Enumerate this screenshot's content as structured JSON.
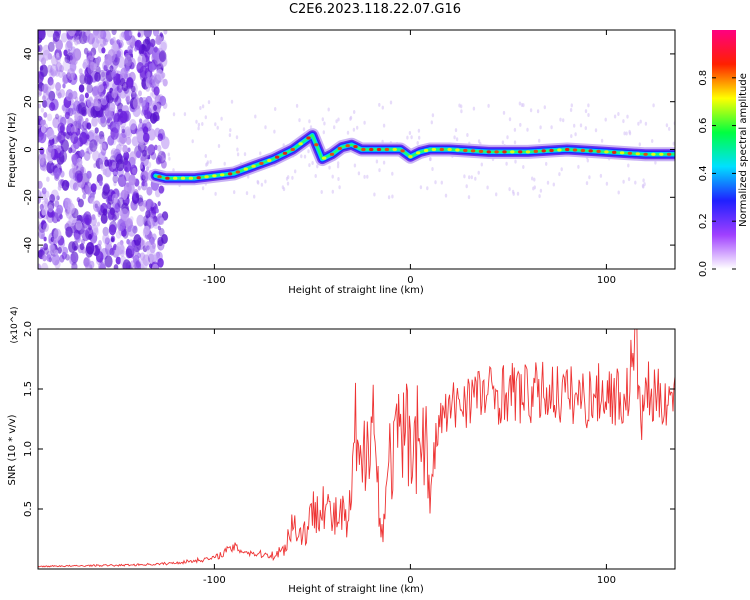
{
  "title": "C2E6.2023.118.22.07.G16",
  "chart_data": [
    {
      "type": "heatmap",
      "xlabel": "Height of straight line (km)",
      "ylabel": "Frequency (Hz)",
      "xlim": [
        -190,
        135
      ],
      "ylim": [
        -50,
        50
      ],
      "x_ticks": [
        -100,
        0,
        100
      ],
      "y_ticks": [
        -40,
        -20,
        0,
        20,
        40
      ],
      "colorbar": {
        "label": "Normalized spectral amplitude",
        "range": [
          0,
          1
        ],
        "ticks": [
          0.0,
          0.2,
          0.4,
          0.6,
          0.8
        ],
        "colors": [
          "#ffffff",
          "#a040ff",
          "#2020ff",
          "#00e0ff",
          "#00ff40",
          "#ffff00",
          "#ff2000",
          "#ff0080"
        ]
      },
      "ridge": {
        "x": [
          -130,
          -125,
          -120,
          -110,
          -100,
          -90,
          -80,
          -70,
          -60,
          -55,
          -50,
          -45,
          -40,
          -35,
          -30,
          -25,
          -20,
          -10,
          -5,
          0,
          5,
          10,
          20,
          40,
          60,
          80,
          100,
          120,
          135
        ],
        "y": [
          -11,
          -12,
          -12,
          -12,
          -11,
          -10,
          -7,
          -4,
          0,
          3,
          6,
          -4,
          -2,
          1,
          2,
          0,
          0,
          0,
          0,
          -3,
          -1,
          0,
          0,
          -1,
          -1,
          0,
          -1,
          -2,
          -2
        ]
      }
    },
    {
      "type": "line",
      "xlabel": "Height of straight line (km)",
      "ylabel": "SNR (10 * v/v)",
      "y_multiplier": "(x10^4)",
      "xlim": [
        -190,
        135
      ],
      "ylim": [
        0,
        20000
      ],
      "x_ticks": [
        -100,
        0,
        100
      ],
      "y_ticks": [
        5000,
        10000,
        15000,
        20000
      ],
      "y_tick_labels": [
        "0.5",
        "1.0",
        "1.5",
        "2.0"
      ],
      "color": "#ee3333",
      "series": [
        {
          "x": [
            -190,
            -180,
            -170,
            -160,
            -150,
            -140,
            -130,
            -120,
            -110,
            -100,
            -95,
            -90,
            -85,
            -80,
            -75,
            -70,
            -65,
            -62,
            -60,
            -55,
            -50,
            -45,
            -40,
            -35,
            -32,
            -30,
            -28,
            -25,
            -22,
            -20,
            -17,
            -15,
            -12,
            -10,
            -5,
            0,
            5,
            8,
            10,
            12,
            15,
            20,
            25,
            30,
            40,
            50,
            60,
            70,
            80,
            90,
            100,
            110,
            115,
            118,
            120,
            125,
            130,
            135
          ],
          "y": [
            200,
            250,
            250,
            300,
            300,
            350,
            400,
            500,
            700,
            900,
            1400,
            1800,
            1500,
            1300,
            1200,
            1200,
            1500,
            3000,
            3800,
            2800,
            4500,
            6200,
            4000,
            4500,
            3500,
            6000,
            11000,
            7000,
            12000,
            15000,
            8000,
            2500,
            7000,
            9500,
            10500,
            11500,
            11000,
            10500,
            5000,
            9500,
            12500,
            13000,
            14000,
            14500,
            14500,
            14800,
            14500,
            14800,
            14500,
            14200,
            14800,
            14000,
            19000,
            12000,
            15000,
            14000,
            14500,
            14000
          ]
        }
      ]
    }
  ]
}
